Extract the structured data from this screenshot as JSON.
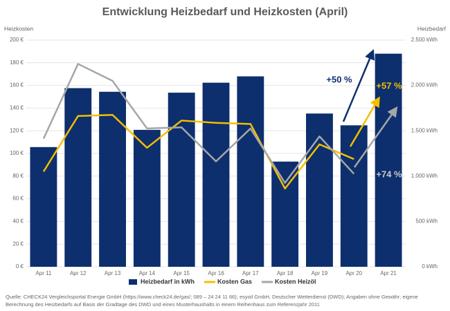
{
  "chart_data": {
    "type": "bar_line",
    "title": "Entwicklung Heizbedarf und Heizkosten (April)",
    "y_label": "Heizkosten",
    "y2_label": "Heizbedarf",
    "categories": [
      "Apr 11",
      "Apr 12",
      "Apr 13",
      "Apr 14",
      "Apr 15",
      "Apr 16",
      "Apr 17",
      "Apr 18",
      "Apr 19",
      "Apr 20",
      "Apr 21"
    ],
    "series": [
      {
        "name": "Heizbedarf in kWh",
        "type": "bar",
        "axis": "y2",
        "color": "#0d2f6e",
        "values": [
          1320,
          1970,
          1930,
          1510,
          1920,
          2030,
          2100,
          1160,
          1690,
          1560,
          2350
        ]
      },
      {
        "name": "Kosten Gas",
        "type": "line",
        "axis": "y",
        "color": "#f5be00",
        "values": [
          84,
          133,
          134,
          105,
          129,
          127,
          126,
          69,
          108,
          95,
          null
        ]
      },
      {
        "name": "Kosten Heizöl",
        "type": "line",
        "axis": "y",
        "color": "#a6a6a6",
        "values": [
          113,
          179,
          164,
          122,
          123,
          93,
          122,
          74,
          115,
          82,
          null
        ]
      }
    ],
    "ylim": [
      0,
      200
    ],
    "yticks": [
      {
        "value": 0,
        "label": "0 €"
      },
      {
        "value": 20,
        "label": "20 €"
      },
      {
        "value": 40,
        "label": "40 €"
      },
      {
        "value": 60,
        "label": "60 €"
      },
      {
        "value": 80,
        "label": "80 €"
      },
      {
        "value": 100,
        "label": "100 €"
      },
      {
        "value": 120,
        "label": "120 €"
      },
      {
        "value": 140,
        "label": "140 €"
      },
      {
        "value": 160,
        "label": "160 €"
      },
      {
        "value": 180,
        "label": "180 €"
      },
      {
        "value": 200,
        "label": "200 €"
      }
    ],
    "y2lim": [
      0,
      2500
    ],
    "y2ticks": [
      {
        "value": 0,
        "label": "0 kWh"
      },
      {
        "value": 500,
        "label": "500 kWh"
      },
      {
        "value": 1000,
        "label": "1.000 kWh"
      },
      {
        "value": 1500,
        "label": "1.500 kWh"
      },
      {
        "value": 2000,
        "label": "2.000 kWh"
      },
      {
        "value": 2500,
        "label": "2.500 kWh"
      }
    ],
    "grid": true,
    "annotations": [
      "+50 %",
      "+57 %",
      "+74 %"
    ],
    "source": [
      "Quelle: CHECK24 Vergleichsportal Energie GmbH (https://www.check24.de/gas/; 089 – 24 24 11 66); esyoil GmbH, Deutscher Wetterdienst (DWD); Angaben ohne Gewähr; eigene",
      "Berechnung des Heizbedarfs auf Basis der Gradtage des DWD und eines Musterhaushalts in einem Reihenhaus zum Referenzjahr 2011"
    ]
  }
}
